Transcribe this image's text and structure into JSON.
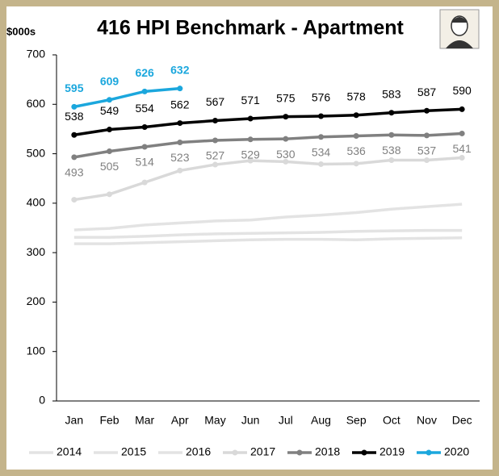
{
  "chart_data": {
    "type": "line",
    "title": "416 HPI Benchmark - Apartment",
    "y_label": "$000s",
    "categories": [
      "Jan",
      "Feb",
      "Mar",
      "Apr",
      "May",
      "Jun",
      "Jul",
      "Aug",
      "Sep",
      "Oct",
      "Nov",
      "Dec"
    ],
    "ylim": [
      0,
      700
    ],
    "yticks": [
      0,
      100,
      200,
      300,
      400,
      500,
      600,
      700
    ],
    "legend": "bottom",
    "series": [
      {
        "name": "2014",
        "color": "#e3e3e3",
        "markers": false,
        "values": [
          318,
          318,
          320,
          322,
          324,
          326,
          327,
          327,
          326,
          328,
          329,
          330
        ]
      },
      {
        "name": "2015",
        "color": "#e3e3e3",
        "markers": false,
        "values": [
          331,
          331,
          333,
          336,
          338,
          339,
          340,
          341,
          343,
          344,
          345,
          345
        ]
      },
      {
        "name": "2016",
        "color": "#e3e3e3",
        "markers": false,
        "values": [
          346,
          349,
          356,
          360,
          364,
          366,
          372,
          376,
          381,
          388,
          393,
          398
        ]
      },
      {
        "name": "2017",
        "color": "#d9d9d9",
        "markers": true,
        "values": [
          407,
          418,
          442,
          466,
          478,
          486,
          484,
          479,
          480,
          487,
          487,
          492
        ]
      },
      {
        "name": "2018",
        "color": "#808080",
        "markers": true,
        "data_labels": "below",
        "label_color": "#808080",
        "values": [
          493,
          505,
          514,
          523,
          527,
          529,
          530,
          534,
          536,
          538,
          537,
          541
        ]
      },
      {
        "name": "2019",
        "color": "#000000",
        "markers": true,
        "data_labels": "above",
        "label_color": "#000000",
        "values": [
          538,
          549,
          554,
          562,
          567,
          571,
          575,
          576,
          578,
          583,
          587,
          590
        ]
      },
      {
        "name": "2020",
        "color": "#1ba7dd",
        "markers": true,
        "data_labels": "above",
        "label_color": "#1ba7dd",
        "label_bold": true,
        "values": [
          595,
          609,
          626,
          632,
          null,
          null,
          null,
          null,
          null,
          null,
          null,
          null
        ]
      }
    ]
  }
}
